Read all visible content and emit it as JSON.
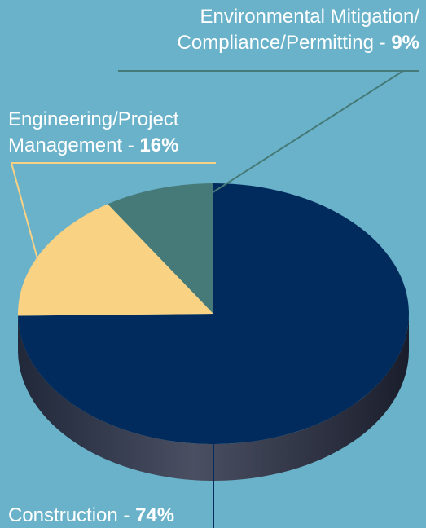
{
  "chart_data": {
    "type": "pie",
    "categories": [
      [
        "Construction"
      ],
      [
        "Engineering/Project",
        "Management"
      ],
      [
        "Environmental Mitigation/",
        "Compliance/Permitting"
      ]
    ],
    "values": [
      74,
      16,
      9
    ],
    "value_labels": [
      "74%",
      "16%",
      "9%"
    ],
    "separator": " - ",
    "colors": [
      "#012b5c",
      "#f9d284",
      "#457a78"
    ]
  }
}
